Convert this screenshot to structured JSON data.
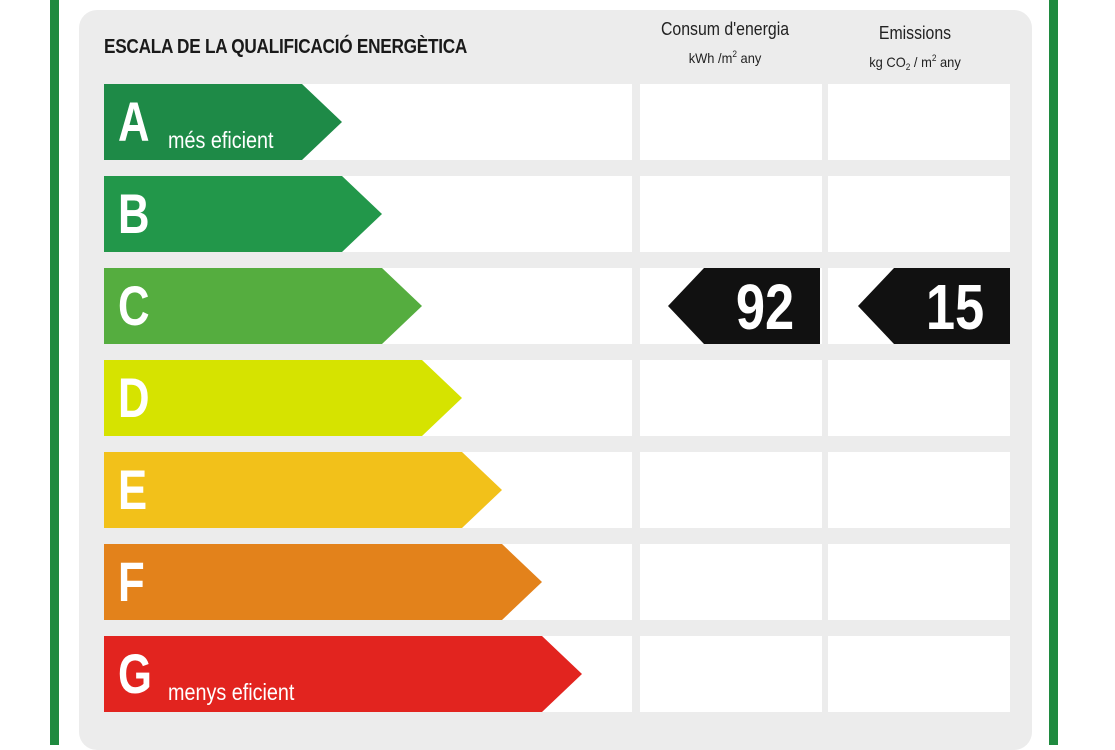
{
  "title": "ESCALA DE LA QUALIFICACIÓ ENERGÈTICA",
  "columns": {
    "consumption": {
      "title": "Consum d'energia",
      "unit_pre": "kWh /m",
      "unit_sup": "2",
      "unit_post": " any"
    },
    "emissions": {
      "title": "Emissions",
      "unit_pre": "kg CO",
      "unit_sub": "2",
      "unit_mid": " / m",
      "unit_sup": "2",
      "unit_post": " any"
    }
  },
  "classes": [
    {
      "letter": "A",
      "label": "més eficient",
      "color": "#1e8a47"
    },
    {
      "letter": "B",
      "label": "",
      "color": "#22974a"
    },
    {
      "letter": "C",
      "label": "",
      "color": "#55ad3f"
    },
    {
      "letter": "D",
      "label": "",
      "color": "#d6e300"
    },
    {
      "letter": "E",
      "label": "",
      "color": "#f2c11a"
    },
    {
      "letter": "F",
      "label": "",
      "color": "#e3821b"
    },
    {
      "letter": "G",
      "label": "menys eficient",
      "color": "#e2241f"
    }
  ],
  "rating": {
    "class": "C",
    "consumption_value": "92",
    "emissions_value": "15"
  }
}
